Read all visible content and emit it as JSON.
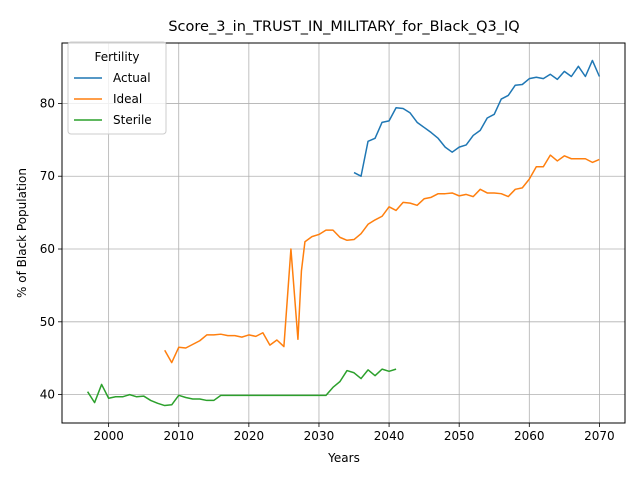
{
  "chart_data": {
    "type": "line",
    "title": "Score_3_in_TRUST_IN_MILITARY_for_Black_Q3_IQ",
    "xlabel": "Years",
    "ylabel": "% of Black Population",
    "xlim": [
      1993.35,
      2073.65
    ],
    "ylim": [
      36.1,
      88.3
    ],
    "xticks": [
      2000,
      2010,
      2020,
      2030,
      2040,
      2050,
      2060,
      2070
    ],
    "yticks": [
      40,
      50,
      60,
      70,
      80
    ],
    "grid": true,
    "legend": {
      "title": "Fertility",
      "placement": "top-left"
    },
    "series": [
      {
        "name": "Actual",
        "color": "#1f77b4",
        "x": [
          2035,
          2036,
          2037,
          2038,
          2039,
          2040,
          2041,
          2042,
          2043,
          2044,
          2045,
          2046,
          2047,
          2048,
          2049,
          2050,
          2051,
          2052,
          2053,
          2054,
          2055,
          2056,
          2057,
          2058,
          2059,
          2060,
          2061,
          2062,
          2063,
          2064,
          2065,
          2066,
          2067,
          2068,
          2069,
          2070
        ],
        "y": [
          70.5,
          70.0,
          74.8,
          75.2,
          77.4,
          77.6,
          79.4,
          79.3,
          78.7,
          77.4,
          76.7,
          76.0,
          75.2,
          74.0,
          73.3,
          74.0,
          74.3,
          75.6,
          76.3,
          78.0,
          78.5,
          80.6,
          81.1,
          82.5,
          82.6,
          83.4,
          83.6,
          83.4,
          84.0,
          83.3,
          84.4,
          83.7,
          85.1,
          83.7,
          85.9,
          83.7
        ]
      },
      {
        "name": "Ideal",
        "color": "#ff7f0e",
        "x": [
          2008,
          2009,
          2010,
          2011,
          2012,
          2013,
          2014,
          2015,
          2016,
          2017,
          2018,
          2019,
          2020,
          2021,
          2022,
          2023,
          2024,
          2025,
          2026,
          2027,
          2027.5,
          2028,
          2029,
          2030,
          2031,
          2032,
          2033,
          2034,
          2035,
          2036,
          2037,
          2038,
          2039,
          2040,
          2041,
          2042,
          2043,
          2044,
          2045,
          2046,
          2047,
          2048,
          2049,
          2050,
          2051,
          2052,
          2053,
          2054,
          2055,
          2056,
          2057,
          2058,
          2059,
          2060,
          2061,
          2062,
          2063,
          2064,
          2065,
          2066,
          2067,
          2068,
          2069,
          2070
        ],
        "y": [
          46.1,
          44.4,
          46.5,
          46.4,
          46.9,
          47.4,
          48.2,
          48.2,
          48.3,
          48.1,
          48.1,
          47.9,
          48.2,
          48.0,
          48.5,
          46.8,
          47.5,
          46.6,
          60.0,
          47.6,
          57.0,
          61.0,
          61.7,
          62.0,
          62.6,
          62.6,
          61.6,
          61.2,
          61.3,
          62.1,
          63.4,
          64.0,
          64.5,
          65.8,
          65.3,
          66.4,
          66.3,
          66.0,
          66.9,
          67.1,
          67.6,
          67.6,
          67.7,
          67.3,
          67.5,
          67.2,
          68.2,
          67.7,
          67.7,
          67.6,
          67.2,
          68.2,
          68.4,
          69.6,
          71.3,
          71.3,
          72.9,
          72.1,
          72.8,
          72.4,
          72.4,
          72.4,
          71.9,
          72.3
        ]
      },
      {
        "name": "Sterile",
        "color": "#2ca02c",
        "x": [
          1997,
          1998,
          1999,
          2000,
          2001,
          2002,
          2003,
          2004,
          2005,
          2006,
          2007,
          2008,
          2009,
          2010,
          2011,
          2012,
          2013,
          2014,
          2015,
          2016,
          2017,
          2018,
          2019,
          2020,
          2021,
          2022,
          2023,
          2024,
          2025,
          2026,
          2027,
          2028,
          2029,
          2030,
          2031,
          2032,
          2033,
          2034,
          2035,
          2036,
          2037,
          2038,
          2039,
          2040,
          2041
        ],
        "y": [
          40.4,
          38.9,
          41.4,
          39.5,
          39.7,
          39.7,
          40.0,
          39.7,
          39.8,
          39.2,
          38.8,
          38.5,
          38.6,
          39.9,
          39.6,
          39.4,
          39.4,
          39.2,
          39.2,
          39.9,
          39.9,
          39.9,
          39.9,
          39.9,
          39.9,
          39.9,
          39.9,
          39.9,
          39.9,
          39.9,
          39.9,
          39.9,
          39.9,
          39.9,
          39.9,
          41.0,
          41.8,
          43.3,
          43.0,
          42.2,
          43.4,
          42.6,
          43.5,
          43.2,
          43.5
        ]
      }
    ]
  }
}
